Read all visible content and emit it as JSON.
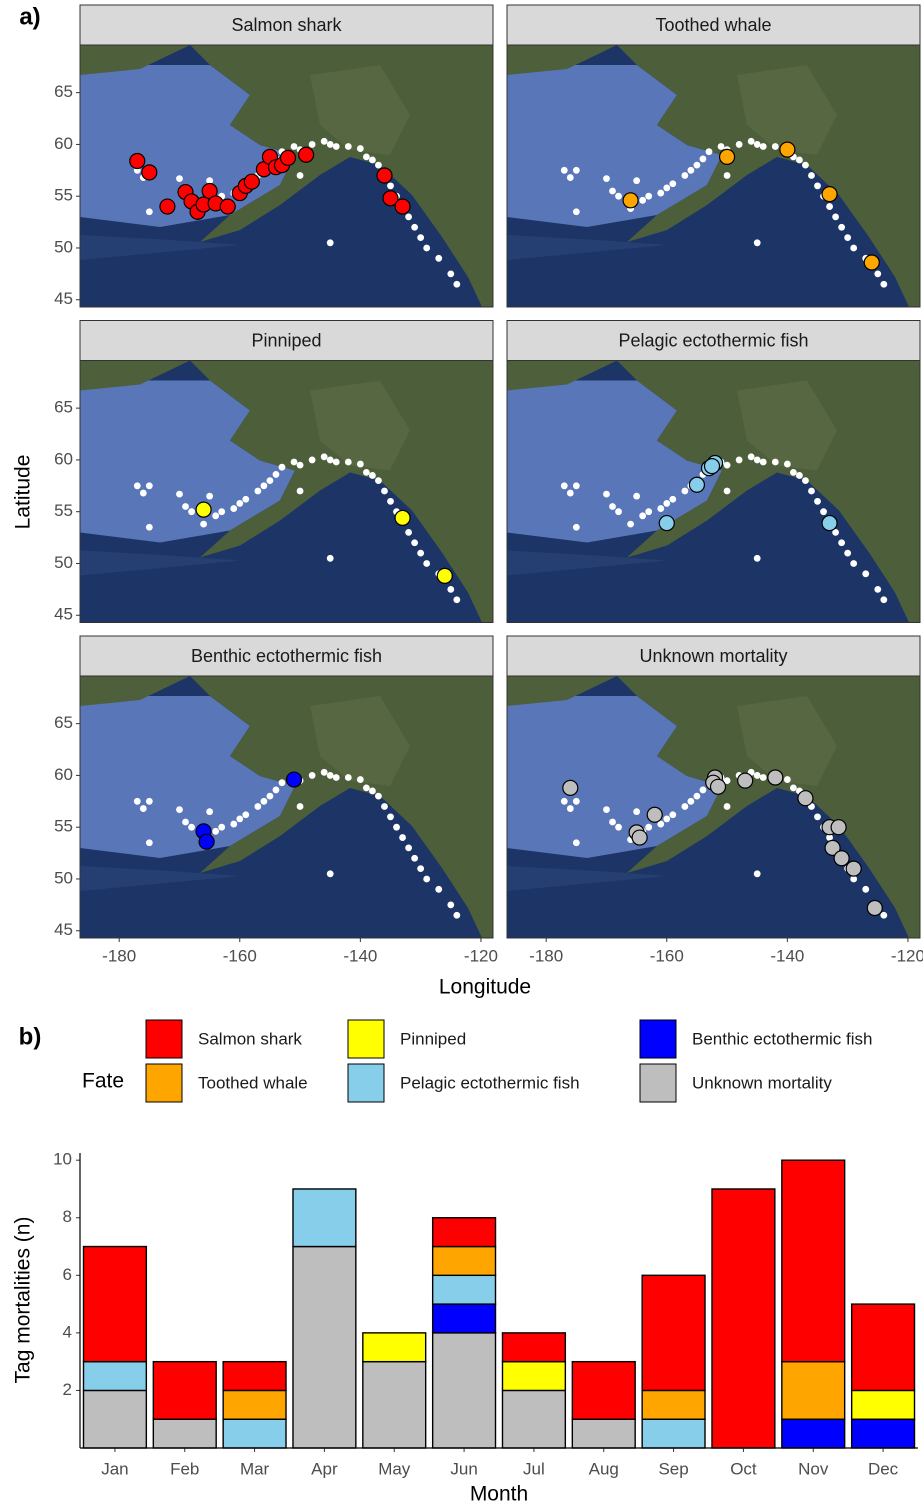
{
  "chart_data": [
    {
      "type": "scatter",
      "label": "a)",
      "xlabel": "Longitude",
      "ylabel": "Latitude",
      "xlim": [
        -186.5,
        -118
      ],
      "ylim": [
        44.3,
        69.6
      ],
      "xticks": [
        -180,
        -160,
        -140,
        -120
      ],
      "yticks": [
        45,
        50,
        55,
        60,
        65
      ],
      "background": {
        "color": "#ffffff",
        "x": [
          -177,
          -175,
          -176,
          -170,
          -169,
          -168,
          -166,
          -164,
          -163,
          -161,
          -160,
          -159,
          -157,
          -156,
          -155,
          -154,
          -153,
          -151,
          -150,
          -148,
          -146,
          -145,
          -144,
          -142,
          -140,
          -139,
          -137,
          -136,
          -135,
          -134,
          -133,
          -132,
          -131,
          -130,
          -129,
          -127,
          -125,
          -124,
          -145,
          -175,
          -165,
          -150,
          -138
        ],
        "y": [
          57.5,
          57.5,
          56.8,
          56.7,
          55.5,
          55,
          53.8,
          54.6,
          55,
          55.3,
          55.8,
          56.2,
          57,
          57.5,
          58,
          58.6,
          59.3,
          59.8,
          59.5,
          60,
          60.3,
          60,
          59.8,
          59.8,
          59.6,
          58.8,
          58,
          57,
          56,
          55,
          54,
          53,
          52,
          51,
          50,
          49,
          47.5,
          46.5,
          50.5,
          53.5,
          56.5,
          57,
          58.5
        ]
      },
      "facets": [
        {
          "title": "Salmon shark",
          "color": "#ff0000",
          "x": [
            -177,
            -175,
            -172,
            -169,
            -168,
            -167,
            -166,
            -165,
            -164,
            -162,
            -160,
            -159,
            -158,
            -156,
            -155,
            -154,
            -153,
            -152,
            -149,
            -136,
            -135,
            -133
          ],
          "y": [
            58.4,
            57.3,
            54,
            55.4,
            54.5,
            53.5,
            54.2,
            55.5,
            54.3,
            54,
            55.3,
            56,
            56.4,
            57.6,
            58.8,
            57.8,
            58,
            58.7,
            59,
            57,
            54.8,
            54
          ]
        },
        {
          "title": "Toothed whale",
          "color": "#ffa500",
          "x": [
            -166,
            -150,
            -140,
            -133,
            -126
          ],
          "y": [
            54.6,
            58.8,
            59.5,
            55.2,
            48.6
          ]
        },
        {
          "title": "Pinniped",
          "color": "#ffff00",
          "x": [
            -166,
            -133,
            -126
          ],
          "y": [
            55.2,
            54.4,
            48.8
          ]
        },
        {
          "title": "Pelagic ectothermic fish",
          "color": "#87ceeb",
          "x": [
            -160,
            -155,
            -153,
            -152,
            -152.5,
            -133
          ],
          "y": [
            53.9,
            57.6,
            59.2,
            59.7,
            59.4,
            53.9
          ]
        },
        {
          "title": "Benthic ectothermic fish",
          "color": "#0000ff",
          "x": [
            -166,
            -165.5,
            -151
          ],
          "y": [
            54.6,
            53.6,
            59.6
          ]
        },
        {
          "title": "Unknown mortality",
          "color": "#bebebe",
          "x": [
            -176,
            -165,
            -164.5,
            -162,
            -152,
            -152.3,
            -151.5,
            -147,
            -142,
            -137,
            -133,
            -131.5,
            -132.5,
            -131,
            -129,
            -125.5
          ],
          "y": [
            58.8,
            54.5,
            54,
            56.2,
            59.8,
            59.3,
            58.9,
            59.5,
            59.8,
            57.8,
            55,
            55,
            53,
            52,
            51,
            47.2
          ]
        }
      ]
    },
    {
      "type": "stacked_bar",
      "label": "b)",
      "xlabel": "Month",
      "ylabel": "Tag mortalities (n)",
      "legend_title": "Fate",
      "categories": [
        "Jan",
        "Feb",
        "Mar",
        "Apr",
        "May",
        "Jun",
        "Jul",
        "Aug",
        "Sep",
        "Oct",
        "Nov",
        "Dec"
      ],
      "ylim": [
        0,
        10.25
      ],
      "yticks": [
        2,
        4,
        6,
        8,
        10
      ],
      "series": [
        {
          "name": "Salmon shark",
          "color": "#ff0000",
          "values": [
            4,
            2,
            1,
            0,
            0,
            1,
            1,
            2,
            4,
            9,
            7,
            3
          ]
        },
        {
          "name": "Toothed whale",
          "color": "#ffa500",
          "values": [
            0,
            0,
            1,
            0,
            0,
            1,
            0,
            0,
            1,
            0,
            2,
            0
          ]
        },
        {
          "name": "Pinniped",
          "color": "#ffff00",
          "values": [
            0,
            0,
            0,
            0,
            1,
            0,
            1,
            0,
            0,
            0,
            0,
            1
          ]
        },
        {
          "name": "Pelagic ectothermic fish",
          "color": "#87ceeb",
          "values": [
            1,
            0,
            1,
            2,
            0,
            1,
            0,
            0,
            1,
            0,
            0,
            0
          ]
        },
        {
          "name": "Benthic ectothermic fish",
          "color": "#0000ff",
          "values": [
            0,
            0,
            0,
            0,
            0,
            1,
            0,
            0,
            0,
            0,
            1,
            1
          ]
        },
        {
          "name": "Unknown mortality",
          "color": "#bebebe",
          "values": [
            2,
            1,
            0,
            7,
            3,
            4,
            2,
            1,
            0,
            0,
            0,
            0
          ]
        }
      ]
    }
  ]
}
